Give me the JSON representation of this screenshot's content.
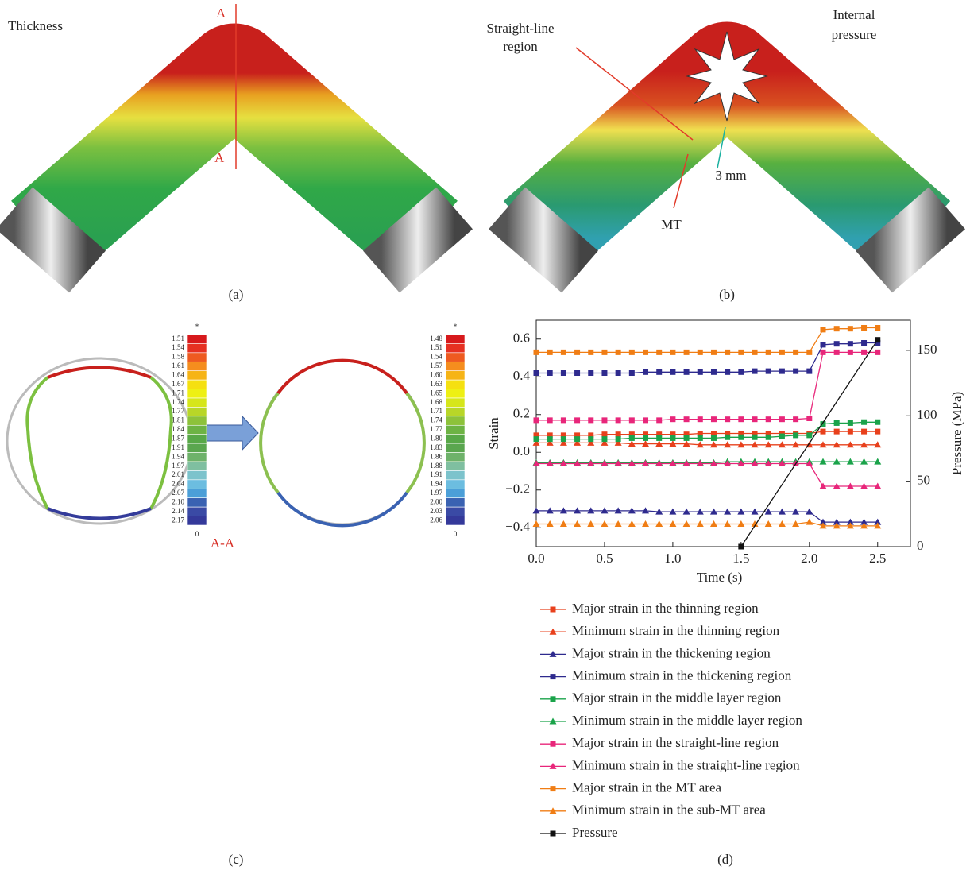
{
  "panels": {
    "a": {
      "label": "(a)",
      "title": "Thickness",
      "section_marks": [
        "A",
        "A"
      ]
    },
    "b": {
      "label": "(b)",
      "straight_line": [
        "Straight-line",
        "region"
      ],
      "pressure": [
        "Internal",
        "pressure"
      ],
      "gap": "3 mm",
      "mt": "MT"
    },
    "c": {
      "label": "(c)",
      "section": "A-A",
      "colorbar_left": {
        "top": "*",
        "bottom": "0",
        "labels": [
          "1.51",
          "1.54",
          "1.58",
          "1.61",
          "1.64",
          "1.67",
          "1.71",
          "1.74",
          "1.77",
          "1.81",
          "1.84",
          "1.87",
          "1.91",
          "1.94",
          "1.97",
          "2.01",
          "2.04",
          "2.07",
          "2.10",
          "2.14",
          "2.17"
        ]
      },
      "colorbar_right": {
        "top": "*",
        "bottom": "0",
        "labels": [
          "1.48",
          "1.51",
          "1.54",
          "1.57",
          "1.60",
          "1.63",
          "1.65",
          "1.68",
          "1.71",
          "1.74",
          "1.77",
          "1.80",
          "1.83",
          "1.86",
          "1.88",
          "1.91",
          "1.94",
          "1.97",
          "2.00",
          "2.03",
          "2.06"
        ]
      }
    },
    "d": {
      "label": "(d)"
    }
  },
  "chart_data": {
    "type": "line",
    "xlabel": "Time (s)",
    "ylabel": "Strain",
    "y2label": "Pressure (MPa)",
    "x": [
      0,
      0.1,
      0.2,
      0.3,
      0.4,
      0.5,
      0.6,
      0.7,
      0.8,
      0.9,
      1.0,
      1.1,
      1.2,
      1.3,
      1.4,
      1.5,
      1.6,
      1.7,
      1.8,
      1.9,
      2.0,
      2.1,
      2.2,
      2.3,
      2.4,
      2.5
    ],
    "xlim": [
      0,
      2.74
    ],
    "xticks": [
      {
        "value": 0,
        "label": "0.0"
      },
      0.5,
      {
        "value": 1,
        "label": "1.0"
      },
      1.5,
      {
        "value": 2,
        "label": "2.0"
      },
      2.5
    ],
    "ylim": [
      -0.5,
      0.7
    ],
    "yticks": [
      {
        "value": -0.4,
        "label": "−0.4"
      },
      {
        "value": -0.2,
        "label": "−0.2"
      },
      {
        "value": 0,
        "label": "0.0"
      },
      0.2,
      0.4,
      0.6
    ],
    "y2lim": [
      0,
      173
    ],
    "y2ticks": [
      0,
      50,
      100,
      150
    ],
    "series": [
      {
        "name": "Major strain in the thinning region",
        "color": "#e8401c",
        "marker": "square",
        "values": [
          0.09,
          0.09,
          0.09,
          0.09,
          0.09,
          0.095,
          0.095,
          0.095,
          0.095,
          0.095,
          0.095,
          0.095,
          0.1,
          0.1,
          0.1,
          0.1,
          0.1,
          0.1,
          0.1,
          0.1,
          0.1,
          0.11,
          0.11,
          0.11,
          0.11,
          0.11
        ]
      },
      {
        "name": "Minimum strain in the thinning region",
        "color": "#e8401c",
        "marker": "triangle",
        "values": [
          0.05,
          0.05,
          0.05,
          0.05,
          0.05,
          0.05,
          0.05,
          0.045,
          0.045,
          0.045,
          0.045,
          0.045,
          0.04,
          0.04,
          0.04,
          0.04,
          0.04,
          0.04,
          0.04,
          0.04,
          0.04,
          0.04,
          0.04,
          0.04,
          0.04,
          0.04
        ]
      },
      {
        "name": "Major strain in the thickening region",
        "color": "#2e2a8e",
        "marker": "triangle",
        "values": [
          -0.31,
          -0.31,
          -0.31,
          -0.31,
          -0.31,
          -0.31,
          -0.31,
          -0.31,
          -0.31,
          -0.315,
          -0.315,
          -0.315,
          -0.315,
          -0.315,
          -0.315,
          -0.315,
          -0.315,
          -0.315,
          -0.315,
          -0.315,
          -0.315,
          -0.37,
          -0.37,
          -0.37,
          -0.37,
          -0.37
        ]
      },
      {
        "name": "Minimum strain in the thickening region",
        "color": "#2e2a8e",
        "marker": "square",
        "values": [
          0.42,
          0.42,
          0.42,
          0.42,
          0.42,
          0.42,
          0.42,
          0.42,
          0.425,
          0.425,
          0.425,
          0.425,
          0.425,
          0.425,
          0.425,
          0.425,
          0.43,
          0.43,
          0.43,
          0.43,
          0.43,
          0.57,
          0.575,
          0.575,
          0.58,
          0.58
        ]
      },
      {
        "name": "Major strain in the middle layer region",
        "color": "#1aa34a",
        "marker": "square",
        "values": [
          0.07,
          0.07,
          0.07,
          0.07,
          0.07,
          0.07,
          0.07,
          0.075,
          0.075,
          0.075,
          0.075,
          0.075,
          0.075,
          0.075,
          0.08,
          0.08,
          0.08,
          0.08,
          0.085,
          0.09,
          0.09,
          0.15,
          0.155,
          0.155,
          0.16,
          0.16
        ]
      },
      {
        "name": "Minimum strain in the middle layer region",
        "color": "#1aa34a",
        "marker": "triangle",
        "values": [
          -0.055,
          -0.055,
          -0.055,
          -0.055,
          -0.055,
          -0.055,
          -0.055,
          -0.055,
          -0.055,
          -0.055,
          -0.055,
          -0.055,
          -0.055,
          -0.055,
          -0.05,
          -0.05,
          -0.05,
          -0.05,
          -0.05,
          -0.05,
          -0.05,
          -0.05,
          -0.05,
          -0.05,
          -0.05,
          -0.05
        ]
      },
      {
        "name": "Major strain in the straight-line region",
        "color": "#e8267a",
        "marker": "square",
        "values": [
          0.17,
          0.17,
          0.17,
          0.17,
          0.17,
          0.17,
          0.17,
          0.17,
          0.17,
          0.17,
          0.175,
          0.175,
          0.175,
          0.175,
          0.175,
          0.175,
          0.175,
          0.175,
          0.175,
          0.175,
          0.18,
          0.53,
          0.53,
          0.53,
          0.53,
          0.53
        ]
      },
      {
        "name": "Minimum strain in the straight-line region",
        "color": "#e8267a",
        "marker": "triangle",
        "values": [
          -0.06,
          -0.06,
          -0.06,
          -0.06,
          -0.06,
          -0.06,
          -0.06,
          -0.06,
          -0.06,
          -0.06,
          -0.06,
          -0.06,
          -0.06,
          -0.06,
          -0.06,
          -0.06,
          -0.06,
          -0.06,
          -0.06,
          -0.06,
          -0.06,
          -0.18,
          -0.18,
          -0.18,
          -0.18,
          -0.18
        ]
      },
      {
        "name": "Major strain in the MT area",
        "color": "#f07d14",
        "marker": "square",
        "values": [
          0.53,
          0.53,
          0.53,
          0.53,
          0.53,
          0.53,
          0.53,
          0.53,
          0.53,
          0.53,
          0.53,
          0.53,
          0.53,
          0.53,
          0.53,
          0.53,
          0.53,
          0.53,
          0.53,
          0.53,
          0.53,
          0.65,
          0.655,
          0.655,
          0.66,
          0.66
        ]
      },
      {
        "name": "Minimum strain in the sub-MT area",
        "color": "#f07d14",
        "marker": "triangle",
        "values": [
          -0.38,
          -0.38,
          -0.38,
          -0.38,
          -0.38,
          -0.38,
          -0.38,
          -0.38,
          -0.38,
          -0.38,
          -0.38,
          -0.38,
          -0.38,
          -0.38,
          -0.38,
          -0.38,
          -0.38,
          -0.38,
          -0.38,
          -0.38,
          -0.37,
          -0.39,
          -0.39,
          -0.39,
          -0.39,
          -0.39
        ]
      },
      {
        "name": "Pressure",
        "color": "#111111",
        "marker": "square",
        "axis": "y2",
        "x": [
          1.5,
          2.5
        ],
        "values": [
          0,
          158
        ]
      }
    ]
  }
}
